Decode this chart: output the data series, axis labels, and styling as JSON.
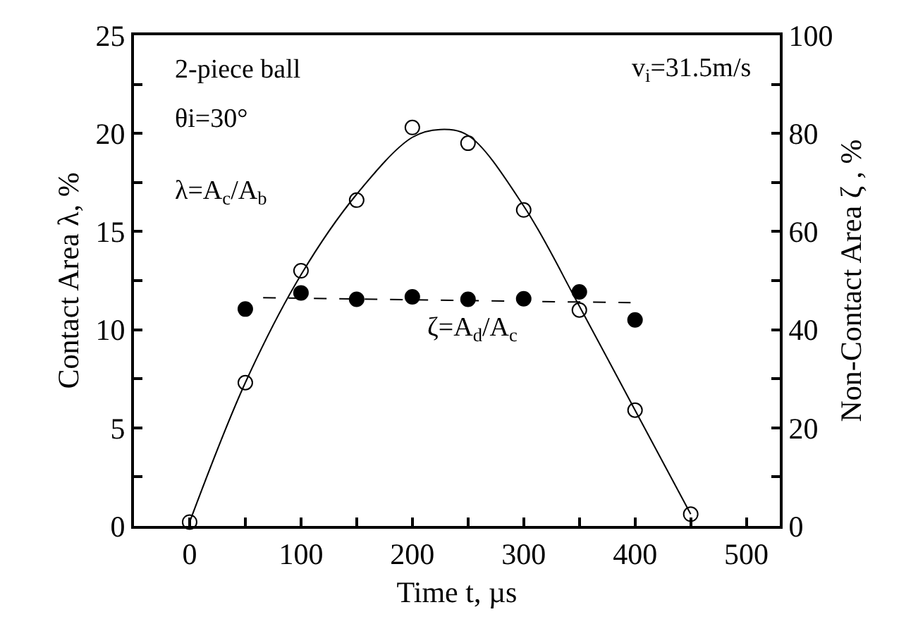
{
  "chart_data": {
    "type": "scatter",
    "xlabel": "Time t, µs",
    "ylabel": "Contact Area λ, %",
    "y2label": "Non-Contact Area ζ , %",
    "annotations": [
      "2-piece ball",
      "θi=30°",
      "λ=A$_{c}$/A$_{b}$",
      "v$_{i}$=31.5m/s",
      "ζ=A$_{d}$/A$_{c}$"
    ],
    "x": [
      0,
      50,
      100,
      150,
      200,
      250,
      300,
      350,
      400,
      450
    ],
    "series": [
      {
        "type": "scatter",
        "color": "#000000",
        "marker": "circle-open",
        "values": [
          0.2,
          7.3,
          13.0,
          16.6,
          20.3,
          19.5,
          16.1,
          11.0,
          5.9,
          0.6
        ]
      },
      {
        "type": "scatter",
        "color": "#000000",
        "marker": "circle",
        "axis": "y2",
        "x": [
          50,
          100,
          150,
          200,
          250,
          300,
          350,
          400
        ],
        "values": [
          44.2,
          47.5,
          46.2,
          46.7,
          46.2,
          46.3,
          47.7,
          42.0
        ]
      },
      {
        "type": "line",
        "color": "#000000",
        "marker": "none",
        "line_style": "solid",
        "x": [
          0,
          50,
          100,
          150,
          200,
          225,
          250,
          300,
          350,
          400,
          450
        ],
        "values": [
          0.2,
          7.3,
          12.8,
          16.9,
          19.8,
          20.2,
          19.9,
          16.3,
          11.2,
          5.9,
          0.6
        ]
      },
      {
        "type": "line",
        "color": "#000000",
        "marker": "none",
        "line_style": "dashed",
        "axis": "y2",
        "x": [
          66,
          396
        ],
        "values": [
          46.5,
          45.5
        ]
      }
    ],
    "xlim": [
      -50,
      530
    ],
    "xticks": [
      0,
      {
        "value": 50,
        "label": null
      },
      100,
      {
        "value": 150,
        "label": null
      },
      200,
      {
        "value": 250,
        "label": null
      },
      300,
      {
        "value": 350,
        "label": null
      },
      400,
      {
        "value": 450,
        "label": null
      },
      500
    ],
    "ylim": [
      0,
      25
    ],
    "yticks": [
      0,
      {
        "value": 2.5,
        "label": null
      },
      5,
      {
        "value": 7.5,
        "label": null
      },
      10,
      {
        "value": 12.5,
        "label": null
      },
      15,
      {
        "value": 17.5,
        "label": null
      },
      20,
      {
        "value": 22.5,
        "label": null
      },
      25
    ],
    "y2lim": [
      0,
      100
    ],
    "y2ticks": [
      0,
      {
        "value": 10,
        "label": null
      },
      20,
      {
        "value": 30,
        "label": null
      },
      40,
      {
        "value": 50,
        "label": null
      },
      60,
      {
        "value": 70,
        "label": null
      },
      80,
      {
        "value": 90,
        "label": null
      },
      100
    ],
    "grid": false
  }
}
